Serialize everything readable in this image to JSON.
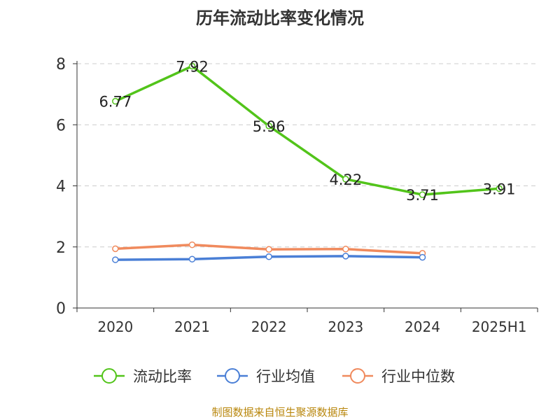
{
  "chart_data": {
    "type": "line",
    "title": "历年流动比率变化情况",
    "categories": [
      "2020",
      "2021",
      "2022",
      "2023",
      "2024",
      "2025H1"
    ],
    "ylim": [
      0,
      8
    ],
    "yticks": [
      0,
      2,
      4,
      6,
      8
    ],
    "grid": true,
    "legend_position": "bottom",
    "series": [
      {
        "name": "流动比率",
        "color": "#52c41a",
        "values": [
          6.77,
          7.92,
          5.96,
          4.22,
          3.71,
          3.91
        ],
        "labels": [
          "6.77",
          "7.92",
          "5.96",
          "4.22",
          "3.71",
          "3.91"
        ]
      },
      {
        "name": "行业均值",
        "color": "#4a7fd6",
        "values": [
          1.58,
          1.6,
          1.68,
          1.7,
          1.66,
          null
        ]
      },
      {
        "name": "行业中位数",
        "color": "#f08a5d",
        "values": [
          1.94,
          2.07,
          1.92,
          1.93,
          1.79,
          null
        ]
      }
    ]
  },
  "footer": {
    "source": "制图数据来自恒生聚源数据库"
  }
}
